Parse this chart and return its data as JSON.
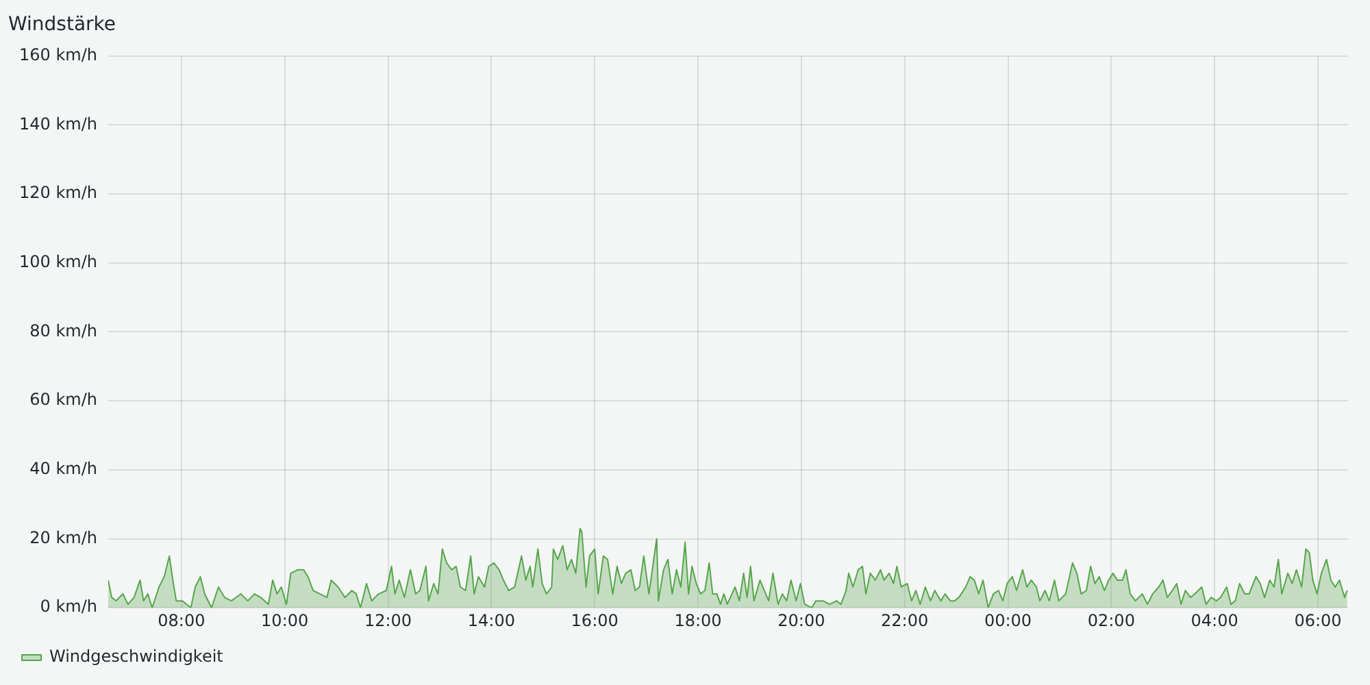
{
  "chart_data": {
    "type": "area",
    "title": "Windstärke",
    "xlim": [
      "--01-01T06:35",
      "--01-02T06:35"
    ],
    "xticks": [
      {
        "value": "--01-01T08:00",
        "label": "08:00"
      },
      {
        "value": "--01-01T10:00",
        "label": "10:00"
      },
      {
        "value": "--01-01T12:00",
        "label": "12:00"
      },
      {
        "value": "--01-01T14:00",
        "label": "14:00"
      },
      {
        "value": "--01-01T16:00",
        "label": "16:00"
      },
      {
        "value": "--01-01T18:00",
        "label": "18:00"
      },
      {
        "value": "--01-01T20:00",
        "label": "20:00"
      },
      {
        "value": "--01-01T22:00",
        "label": "22:00"
      },
      {
        "value": "--01-02T00:00",
        "label": "00:00"
      },
      {
        "value": "--01-02T02:00",
        "label": "02:00"
      },
      {
        "value": "--01-02T04:00",
        "label": "04:00"
      },
      {
        "value": "--01-02T06:00",
        "label": "06:00"
      }
    ],
    "ylim": [
      0,
      160
    ],
    "yticks": [
      {
        "value": 0,
        "label": "0 km/h"
      },
      {
        "value": 20,
        "label": "20 km/h"
      },
      {
        "value": 40,
        "label": "40 km/h"
      },
      {
        "value": 60,
        "label": "60 km/h"
      },
      {
        "value": 80,
        "label": "80 km/h"
      },
      {
        "value": 100,
        "label": "100 km/h"
      },
      {
        "value": 120,
        "label": "120 km/h"
      },
      {
        "value": 140,
        "label": "140 km/h"
      },
      {
        "value": 160,
        "label": "160 km/h"
      }
    ],
    "grid": true,
    "legend": "bottom left",
    "marker": "none",
    "line_style": "solid",
    "series": [
      {
        "name": "Windgeschwindigkeit",
        "color": "#56a64b",
        "x": [
          "--01-01T06:35",
          "--01-01T06:39",
          "--01-01T06:44",
          "--01-01T06:52",
          "--01-01T06:58",
          "--01-01T07:05",
          "--01-01T07:12",
          "--01-01T07:16",
          "--01-01T07:21",
          "--01-01T07:26",
          "--01-01T07:34",
          "--01-01T07:40",
          "--01-01T07:45",
          "--01-01T07:46",
          "--01-01T07:50",
          "--01-01T07:54",
          "--01-01T08:01",
          "--01-01T08:11",
          "--01-01T08:16",
          "--01-01T08:22",
          "--01-01T08:27",
          "--01-01T08:35",
          "--01-01T08:43",
          "--01-01T08:50",
          "--01-01T08:58",
          "--01-01T09:09",
          "--01-01T09:17",
          "--01-01T09:25",
          "--01-01T09:32",
          "--01-01T09:41",
          "--01-01T09:46",
          "--01-01T09:51",
          "--01-01T09:56",
          "--01-01T10:02",
          "--01-01T10:07",
          "--01-01T10:15",
          "--01-01T10:22",
          "--01-01T10:27",
          "--01-01T10:33",
          "--01-01T10:41",
          "--01-01T10:49",
          "--01-01T10:54",
          "--01-01T11:02",
          "--01-01T11:10",
          "--01-01T11:18",
          "--01-01T11:23",
          "--01-01T11:28",
          "--01-01T11:35",
          "--01-01T11:41",
          "--01-01T11:49",
          "--01-01T11:58",
          "--01-01T12:04",
          "--01-01T12:08",
          "--01-01T12:13",
          "--01-01T12:19",
          "--01-01T12:25",
          "--01-01T12:26",
          "--01-01T12:32",
          "--01-01T12:37",
          "--01-01T12:44",
          "--01-01T12:47",
          "--01-01T12:53",
          "--01-01T12:58",
          "--01-01T13:03",
          "--01-01T13:08",
          "--01-01T13:14",
          "--01-01T13:19",
          "--01-01T13:24",
          "--01-01T13:30",
          "--01-01T13:36",
          "--01-01T13:40",
          "--01-01T13:45",
          "--01-01T13:52",
          "--01-01T13:57",
          "--01-01T14:03",
          "--01-01T14:09",
          "--01-01T14:14",
          "--01-01T14:20",
          "--01-01T14:27",
          "--01-01T14:35",
          "--01-01T14:40",
          "--01-01T14:45",
          "--01-01T14:48",
          "--01-01T14:54",
          "--01-01T14:59",
          "--01-01T15:04",
          "--01-01T15:10",
          "--01-01T15:12",
          "--01-01T15:17",
          "--01-01T15:23",
          "--01-01T15:28",
          "--01-01T15:33",
          "--01-01T15:38",
          "--01-01T15:43",
          "--01-01T15:45",
          "--01-01T15:50",
          "--01-01T15:54",
          "--01-01T16:00",
          "--01-01T16:04",
          "--01-01T16:10",
          "--01-01T16:15",
          "--01-01T16:21",
          "--01-01T16:26",
          "--01-01T16:31",
          "--01-01T16:36",
          "--01-01T16:42",
          "--01-01T16:47",
          "--01-01T16:52",
          "--01-01T16:57",
          "--01-01T17:03",
          "--01-01T17:08",
          "--01-01T17:12",
          "--01-01T17:14",
          "--01-01T17:20",
          "--01-01T17:25",
          "--01-01T17:30",
          "--01-01T17:35",
          "--01-01T17:40",
          "--01-01T17:45",
          "--01-01T17:49",
          "--01-01T17:53",
          "--01-01T17:58",
          "--01-01T18:03",
          "--01-01T18:08",
          "--01-01T18:13",
          "--01-01T18:17",
          "--01-01T18:22",
          "--01-01T18:26",
          "--01-01T18:30",
          "--01-01T18:34",
          "--01-01T18:43",
          "--01-01T18:48",
          "--01-01T18:53",
          "--01-01T18:57",
          "--01-01T19:01",
          "--01-01T19:05",
          "--01-01T19:12",
          "--01-01T19:17",
          "--01-01T19:22",
          "--01-01T19:27",
          "--01-01T19:33",
          "--01-01T19:38",
          "--01-01T19:43",
          "--01-01T19:48",
          "--01-01T19:54",
          "--01-01T19:59",
          "--01-01T20:04",
          "--01-01T20:12",
          "--01-01T20:17",
          "--01-01T20:25",
          "--01-01T20:33",
          "--01-01T20:41",
          "--01-01T20:46",
          "--01-01T20:52",
          "--01-01T20:55",
          "--01-01T21:00",
          "--01-01T21:06",
          "--01-01T21:11",
          "--01-01T21:15",
          "--01-01T21:20",
          "--01-01T21:26",
          "--01-01T21:32",
          "--01-01T21:36",
          "--01-01T21:42",
          "--01-01T21:47",
          "--01-01T21:51",
          "--01-01T21:56",
          "--01-01T22:03",
          "--01-01T22:08",
          "--01-01T22:13",
          "--01-01T22:18",
          "--01-01T22:24",
          "--01-01T22:30",
          "--01-01T22:35",
          "--01-01T22:42",
          "--01-01T22:47",
          "--01-01T22:53",
          "--01-01T22:58",
          "--01-01T23:03",
          "--01-01T23:11",
          "--01-01T23:16",
          "--01-01T23:21",
          "--01-01T23:26",
          "--01-01T23:31",
          "--01-01T23:37",
          "--01-01T23:43",
          "--01-01T23:49",
          "--01-01T23:54",
          "--01-01T23:59",
          "--01-02T00:05",
          "--01-02T00:10",
          "--01-02T00:17",
          "--01-02T00:22",
          "--01-02T00:27",
          "--01-02T00:33",
          "--01-02T00:37",
          "--01-02T00:38",
          "--01-02T00:43",
          "--01-02T00:48",
          "--01-02T00:54",
          "--01-02T00:59",
          "--01-02T01:07",
          "--01-02T01:15",
          "--01-02T01:20",
          "--01-02T01:25",
          "--01-02T01:31",
          "--01-02T01:36",
          "--01-02T01:41",
          "--01-02T01:46",
          "--01-02T01:52",
          "--01-02T01:57",
          "--01-02T02:02",
          "--01-02T02:07",
          "--01-02T02:13",
          "--01-02T02:17",
          "--01-02T02:22",
          "--01-02T02:28",
          "--01-02T02:36",
          "--01-02T02:42",
          "--01-02T02:48",
          "--01-02T02:55",
          "--01-02T03:00",
          "--01-02T03:05",
          "--01-02T03:11",
          "--01-02T03:16",
          "--01-02T03:21",
          "--01-02T03:26",
          "--01-02T03:32",
          "--01-02T03:37",
          "--01-02T03:45",
          "--01-02T03:50",
          "--01-02T03:56",
          "--01-02T04:02",
          "--01-02T04:07",
          "--01-02T04:14",
          "--01-02T04:19",
          "--01-02T04:24",
          "--01-02T04:29",
          "--01-02T04:35",
          "--01-02T04:40",
          "--01-02T04:48",
          "--01-02T04:53",
          "--01-02T04:58",
          "--01-02T05:04",
          "--01-02T05:09",
          "--01-02T05:14",
          "--01-02T05:18",
          "--01-02T05:25",
          "--01-02T05:30",
          "--01-02T05:35",
          "--01-02T05:41",
          "--01-02T05:46",
          "--01-02T05:50",
          "--01-02T05:54",
          "--01-02T05:59",
          "--01-02T06:04",
          "--01-02T06:10",
          "--01-02T06:15",
          "--01-02T06:20",
          "--01-02T06:25",
          "--01-02T06:31",
          "--01-02T06:34"
        ],
        "values": [
          8,
          3,
          2,
          4,
          1,
          3,
          8,
          2,
          4,
          0,
          6,
          9,
          14,
          15,
          8,
          2,
          2,
          0,
          6,
          9,
          4,
          0,
          6,
          3,
          2,
          4,
          2,
          4,
          3,
          1,
          8,
          4,
          6,
          1,
          10,
          11,
          11,
          9,
          5,
          4,
          3,
          8,
          6,
          3,
          5,
          4,
          0,
          7,
          2,
          4,
          5,
          12,
          4,
          8,
          3,
          10,
          11,
          4,
          5,
          12,
          2,
          7,
          4,
          17,
          13,
          11,
          12,
          6,
          5,
          15,
          4,
          9,
          6,
          12,
          13,
          11,
          8,
          5,
          6,
          15,
          8,
          12,
          6,
          17,
          7,
          4,
          6,
          17,
          14,
          18,
          11,
          14,
          10,
          23,
          22,
          6,
          15,
          17,
          4,
          15,
          14,
          4,
          12,
          7,
          10,
          11,
          5,
          6,
          15,
          4,
          13,
          20,
          2,
          11,
          14,
          4,
          11,
          6,
          19,
          4,
          12,
          7,
          4,
          5,
          13,
          4,
          4,
          1,
          4,
          1,
          6,
          2,
          10,
          3,
          12,
          2,
          8,
          5,
          2,
          10,
          1,
          4,
          2,
          8,
          2,
          7,
          1,
          0,
          2,
          2,
          1,
          2,
          1,
          5,
          10,
          6,
          11,
          12,
          4,
          10,
          8,
          11,
          8,
          10,
          7,
          12,
          6,
          7,
          2,
          5,
          1,
          6,
          2,
          5,
          2,
          4,
          2,
          2,
          3,
          6,
          9,
          8,
          4,
          8,
          0,
          4,
          5,
          2,
          7,
          9,
          5,
          11,
          6,
          8,
          6,
          2,
          2,
          5,
          2,
          8,
          2,
          4,
          13,
          10,
          4,
          5,
          12,
          7,
          9,
          5,
          8,
          10,
          8,
          8,
          11,
          4,
          2,
          4,
          1,
          4,
          6,
          8,
          3,
          5,
          7,
          1,
          5,
          3,
          4,
          6,
          1,
          3,
          2,
          3,
          6,
          1,
          2,
          7,
          4,
          4,
          9,
          7,
          3,
          8,
          6,
          14,
          4,
          10,
          7,
          11,
          6,
          17,
          16,
          8,
          4,
          10,
          14,
          8,
          6,
          8,
          3,
          5
        ]
      }
    ]
  }
}
